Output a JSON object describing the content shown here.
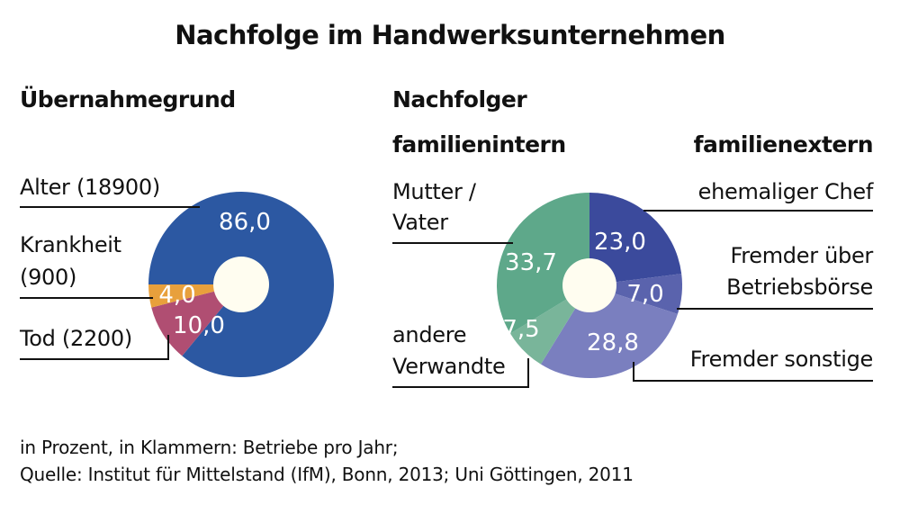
{
  "title": "Nachfolge im Handwerksunternehmen",
  "left_header": "Übernahmegrund",
  "right_header": "Nachfolger",
  "right_sub_left": "familienintern",
  "right_sub_right": "familienextern",
  "labels": {
    "alter": "Alter (18900)",
    "krankheit_1": "Krankheit",
    "krankheit_2": "(900)",
    "tod": "Tod (2200)",
    "mutter_1": "Mutter /",
    "mutter_2": "Vater",
    "andere_1": "andere",
    "andere_2": "Verwandte",
    "chef": "ehemaliger Chef",
    "boerse_1": "Fremder über",
    "boerse_2": "Betriebsbörse",
    "sonstige": "Fremder sonstige"
  },
  "footnote_1": "in Prozent, in Klammern: Betriebe pro Jahr;",
  "footnote_2": "Quelle: Institut für Mittelstand (IfM), Bonn, 2013; Uni Göttingen, 2011",
  "chart_data": [
    {
      "type": "pie",
      "title": "Übernahmegrund",
      "unit": "Prozent",
      "categories": [
        "Alter",
        "Krankheit",
        "Tod"
      ],
      "values": [
        86.0,
        4.0,
        10.0
      ],
      "value_labels": [
        "86,0",
        "4,0",
        "10,0"
      ],
      "counts": [
        18900,
        900,
        2200
      ],
      "colors": [
        "#2c58a2",
        "#e8a03c",
        "#b04e72"
      ]
    },
    {
      "type": "pie",
      "title": "Nachfolger",
      "unit": "Prozent",
      "categories": [
        "ehemaliger Chef",
        "Fremder über Betriebsbörse",
        "Fremder sonstige",
        "andere Verwandte",
        "Mutter / Vater"
      ],
      "groups": [
        "familienextern",
        "familienextern",
        "familienextern",
        "familienintern",
        "familienintern"
      ],
      "values": [
        23.0,
        7.0,
        28.8,
        7.5,
        33.7
      ],
      "value_labels": [
        "23,0",
        "7,0",
        "28,8",
        "7,5",
        "33,7"
      ],
      "colors": [
        "#3b4a9c",
        "#5a63ad",
        "#7a7fbf",
        "#79b59a",
        "#5ea88a"
      ]
    }
  ]
}
